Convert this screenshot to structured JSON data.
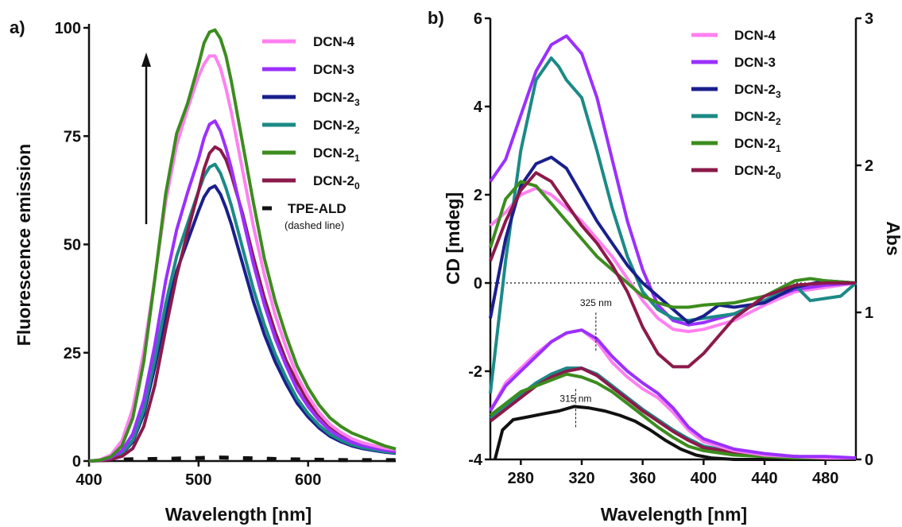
{
  "panels": {
    "a": {
      "letter": "a)",
      "xlabel": "Wavelength [nm]",
      "ylabel": "Fluorescence emission",
      "dashed_note": "(dashed line)"
    },
    "b": {
      "letter": "b)",
      "xlabel": "Wavelength [nm]",
      "ylabel_left": "CD [mdeg]",
      "ylabel_right": "Abs",
      "annotations": [
        {
          "text": "325 nm",
          "x": 322,
          "abs": 0.88
        },
        {
          "text": "315 nm",
          "x": 315,
          "abs": 0.36
        }
      ]
    }
  },
  "colors": {
    "DCN-4": "#ff80f0",
    "DCN-3": "#9b30ff",
    "DCN-2_3": "#1a1f8c",
    "DCN-2_2": "#1b8a86",
    "DCN-2_1": "#3c8c1e",
    "DCN-2_0": "#8b1a4a",
    "TPE-ALD": "#111111"
  },
  "chart_data": [
    {
      "type": "line",
      "xlabel": "Wavelength [nm]",
      "ylabel": "Fluorescence emission",
      "xlim": [
        400,
        680
      ],
      "ylim": [
        0,
        100
      ],
      "xticks": [
        400,
        500,
        600
      ],
      "yticks": [
        0,
        25,
        50,
        75,
        100
      ],
      "legend_position": "top-right",
      "arrow": "up",
      "series": [
        {
          "name": "DCN-4",
          "key": "DCN-4",
          "label_main": "DCN-4",
          "label_sub": "",
          "peak": 93.5
        },
        {
          "name": "DCN-3",
          "key": "DCN-3",
          "label_main": "DCN-3",
          "label_sub": "",
          "peak": 78.5
        },
        {
          "name": "DCN-23",
          "key": "DCN-2_3",
          "label_main": "DCN-2",
          "label_sub": "3",
          "peak": 63.5
        },
        {
          "name": "DCN-22",
          "key": "DCN-2_2",
          "label_main": "DCN-2",
          "label_sub": "2",
          "peak": 68.5
        },
        {
          "name": "DCN-21",
          "key": "DCN-2_1",
          "label_main": "DCN-2",
          "label_sub": "1",
          "peak": 99.5
        },
        {
          "name": "DCN-20",
          "key": "DCN-2_0",
          "label_main": "DCN-2",
          "label_sub": "0",
          "peak": 72.5
        },
        {
          "name": "TPE-ALD",
          "key": "TPE-ALD",
          "label_main": "TPE-ALD",
          "label_sub": "",
          "dashed": true,
          "x": [
            410,
            440,
            470,
            500,
            520,
            550,
            580,
            610,
            640,
            670,
            680
          ],
          "y": [
            0.2,
            0.4,
            0.5,
            0.7,
            0.8,
            0.6,
            0.4,
            0.3,
            0.2,
            0.2,
            0.2
          ]
        }
      ],
      "x": [
        400,
        410,
        420,
        430,
        440,
        450,
        460,
        470,
        480,
        490,
        500,
        505,
        510,
        515,
        520,
        525,
        530,
        540,
        550,
        560,
        570,
        580,
        590,
        600,
        610,
        620,
        630,
        640,
        650,
        660,
        670,
        680
      ],
      "shapes": {
        "DCN-4": [
          0,
          0.3,
          1.5,
          5,
          13,
          27,
          45,
          64,
          78,
          87,
          95,
          98,
          100,
          100,
          97,
          92,
          86,
          72,
          58,
          46,
          36,
          28,
          21,
          16,
          12,
          9,
          7,
          5.5,
          4.5,
          3.8,
          3.2,
          2.8
        ],
        "DCN-3": [
          0,
          0.2,
          1,
          3,
          8,
          18,
          34,
          53,
          68,
          79,
          89,
          95,
          99,
          100,
          97,
          92,
          86,
          72,
          58,
          46,
          36,
          28,
          21,
          16,
          12,
          9,
          7,
          5.5,
          4.5,
          3.8,
          3.2,
          2.8
        ],
        "DCN-2_3": [
          0,
          0.2,
          0.8,
          2.5,
          7,
          17,
          34,
          53,
          69,
          80,
          91,
          96,
          99,
          100,
          97,
          92,
          86,
          72,
          58,
          46,
          36,
          28,
          21,
          16,
          12,
          9,
          7,
          5.5,
          4.5,
          3.8,
          3.2,
          2.8
        ],
        "DCN-2_2": [
          0,
          0.2,
          0.8,
          2.5,
          7,
          17,
          34,
          53,
          69,
          80,
          91,
          96,
          99,
          100,
          97,
          92,
          86,
          72,
          58,
          46,
          36,
          28,
          21,
          16,
          12,
          9,
          7,
          5.5,
          4.5,
          3.8,
          3.2,
          2.8
        ],
        "DCN-2_1": [
          0,
          0.2,
          1,
          3.5,
          10,
          23,
          42,
          62,
          76,
          83,
          92,
          97,
          99.5,
          100,
          98,
          94,
          88,
          74,
          60,
          47,
          37,
          29,
          22,
          17,
          13,
          10,
          8,
          6.5,
          5.5,
          4.5,
          3.5,
          2.8
        ],
        "DCN-2_0": [
          0,
          0.1,
          0.5,
          1.5,
          4,
          11,
          24,
          42,
          59,
          73,
          86,
          93,
          98,
          100,
          99,
          96,
          91,
          79,
          65,
          52,
          41,
          32,
          25,
          19,
          14.5,
          11,
          8.5,
          6.5,
          5.2,
          4.3,
          3.5,
          3
        ]
      }
    },
    {
      "type": "line",
      "xlabel": "Wavelength [nm]",
      "ylabel": "CD [mdeg]",
      "ylabel_right": "Abs",
      "xlim": [
        260,
        500
      ],
      "ylim_left": [
        -4,
        6
      ],
      "ylim_right": [
        0,
        3
      ],
      "xticks": [
        280,
        320,
        360,
        400,
        440,
        480
      ],
      "yticks_left": [
        -4,
        -2,
        0,
        2,
        4,
        6
      ],
      "yticks_right": [
        0,
        1,
        2,
        3
      ],
      "legend_position": "top-right",
      "zero_line": "dotted",
      "series": [
        {
          "name": "DCN-4",
          "key": "DCN-4",
          "label_main": "DCN-4",
          "label_sub": "",
          "cd_x": [
            260,
            270,
            280,
            290,
            300,
            310,
            320,
            330,
            340,
            350,
            360,
            370,
            380,
            390,
            400,
            420,
            440,
            460,
            480,
            500
          ],
          "cd_y": [
            1.3,
            1.6,
            2.0,
            2.15,
            2.0,
            1.7,
            1.4,
            1.0,
            0.6,
            0.1,
            -0.4,
            -0.8,
            -1.05,
            -1.1,
            -1.05,
            -0.85,
            -0.5,
            -0.2,
            -0.1,
            0
          ],
          "abs_x": [
            260,
            270,
            280,
            290,
            300,
            310,
            320,
            330,
            340,
            350,
            360,
            370,
            380,
            390,
            400,
            420,
            440,
            460,
            480,
            500
          ],
          "abs_y": [
            0.33,
            0.52,
            0.62,
            0.72,
            0.8,
            0.86,
            0.88,
            0.8,
            0.66,
            0.56,
            0.48,
            0.42,
            0.32,
            0.2,
            0.12,
            0.06,
            0.03,
            0.02,
            0.01,
            0.01
          ]
        },
        {
          "name": "DCN-3",
          "key": "DCN-3",
          "label_main": "DCN-3",
          "label_sub": "",
          "cd_x": [
            260,
            270,
            280,
            290,
            300,
            310,
            320,
            330,
            340,
            350,
            360,
            370,
            380,
            390,
            400,
            420,
            440,
            460,
            480,
            500
          ],
          "cd_y": [
            2.3,
            2.8,
            3.8,
            4.8,
            5.4,
            5.6,
            5.2,
            4.2,
            2.8,
            1.4,
            0.3,
            -0.5,
            -0.85,
            -0.95,
            -0.9,
            -0.7,
            -0.4,
            -0.15,
            -0.05,
            0
          ],
          "abs_x": [
            260,
            270,
            280,
            290,
            300,
            310,
            320,
            330,
            340,
            350,
            360,
            370,
            380,
            390,
            400,
            420,
            440,
            460,
            480,
            500
          ],
          "abs_y": [
            0.33,
            0.5,
            0.6,
            0.7,
            0.8,
            0.86,
            0.88,
            0.82,
            0.7,
            0.6,
            0.52,
            0.45,
            0.35,
            0.22,
            0.14,
            0.07,
            0.04,
            0.02,
            0.02,
            0.01
          ]
        },
        {
          "name": "DCN-23",
          "key": "DCN-2_3",
          "label_main": "DCN-2",
          "label_sub": "3",
          "cd_x": [
            260,
            270,
            280,
            290,
            300,
            310,
            320,
            330,
            340,
            350,
            360,
            370,
            380,
            390,
            400,
            410,
            420,
            440,
            460,
            480,
            500
          ],
          "cd_y": [
            -0.8,
            1.0,
            2.2,
            2.7,
            2.85,
            2.6,
            2.0,
            1.4,
            0.9,
            0.4,
            0.0,
            -0.3,
            -0.6,
            -0.9,
            -0.75,
            -0.5,
            -0.55,
            -0.45,
            -0.1,
            0.05,
            0
          ],
          "abs_x": [
            260,
            270,
            280,
            290,
            300,
            310,
            320,
            330,
            340,
            350,
            360,
            370,
            380,
            390,
            400,
            420,
            440,
            460,
            480,
            500
          ],
          "abs_y": [
            0.28,
            0.36,
            0.44,
            0.52,
            0.58,
            0.62,
            0.62,
            0.58,
            0.5,
            0.42,
            0.34,
            0.27,
            0.2,
            0.14,
            0.09,
            0.05,
            0.03,
            0.02,
            0.01,
            0.01
          ]
        },
        {
          "name": "DCN-22",
          "key": "DCN-2_2",
          "label_main": "DCN-2",
          "label_sub": "2",
          "cd_x": [
            260,
            270,
            280,
            290,
            300,
            305,
            310,
            320,
            330,
            340,
            350,
            360,
            370,
            380,
            390,
            400,
            420,
            440,
            460,
            470,
            480,
            490,
            500
          ],
          "cd_y": [
            -2.5,
            0.5,
            3.0,
            4.6,
            5.1,
            4.9,
            4.6,
            4.2,
            3.0,
            1.7,
            0.6,
            -0.2,
            -0.6,
            -0.8,
            -0.85,
            -0.8,
            -0.7,
            -0.4,
            -0.05,
            -0.4,
            -0.35,
            -0.3,
            0
          ],
          "abs_x": [
            260,
            270,
            280,
            290,
            300,
            310,
            320,
            330,
            340,
            350,
            360,
            370,
            380,
            390,
            400,
            420,
            440,
            460,
            480,
            500
          ],
          "abs_y": [
            0.28,
            0.36,
            0.44,
            0.52,
            0.58,
            0.62,
            0.62,
            0.58,
            0.5,
            0.42,
            0.34,
            0.27,
            0.2,
            0.14,
            0.09,
            0.05,
            0.03,
            0.02,
            0.01,
            0.01
          ]
        },
        {
          "name": "DCN-21",
          "key": "DCN-2_1",
          "label_main": "DCN-2",
          "label_sub": "1",
          "cd_x": [
            260,
            270,
            280,
            290,
            300,
            310,
            320,
            330,
            340,
            350,
            360,
            370,
            380,
            390,
            400,
            420,
            440,
            460,
            470,
            480,
            500
          ],
          "cd_y": [
            0.8,
            1.9,
            2.3,
            2.2,
            1.8,
            1.4,
            1.0,
            0.6,
            0.3,
            0.0,
            -0.3,
            -0.45,
            -0.55,
            -0.55,
            -0.5,
            -0.45,
            -0.3,
            0.05,
            0.1,
            0.05,
            0
          ],
          "abs_x": [
            260,
            270,
            280,
            290,
            300,
            310,
            320,
            330,
            340,
            350,
            360,
            370,
            380,
            390,
            400,
            420,
            440,
            460,
            480,
            500
          ],
          "abs_y": [
            0.3,
            0.38,
            0.46,
            0.5,
            0.54,
            0.58,
            0.56,
            0.52,
            0.46,
            0.38,
            0.3,
            0.22,
            0.15,
            0.09,
            0.06,
            0.03,
            0.02,
            0.01,
            0.01,
            0.01
          ]
        },
        {
          "name": "DCN-20",
          "key": "DCN-2_0",
          "label_main": "DCN-2",
          "label_sub": "0",
          "cd_x": [
            260,
            270,
            280,
            290,
            300,
            310,
            320,
            330,
            340,
            350,
            360,
            370,
            380,
            390,
            400,
            410,
            420,
            440,
            460,
            480,
            500
          ],
          "cd_y": [
            0.5,
            1.4,
            2.1,
            2.5,
            2.3,
            1.8,
            1.3,
            0.9,
            0.4,
            -0.2,
            -1.0,
            -1.6,
            -1.9,
            -1.9,
            -1.6,
            -1.2,
            -0.8,
            -0.3,
            -0.05,
            0,
            0
          ],
          "abs_x": [
            260,
            270,
            280,
            290,
            300,
            310,
            320,
            330,
            340,
            350,
            360,
            370,
            380,
            390,
            400,
            420,
            440,
            460,
            480,
            500
          ],
          "abs_y": [
            0.26,
            0.34,
            0.42,
            0.5,
            0.56,
            0.6,
            0.62,
            0.57,
            0.49,
            0.41,
            0.33,
            0.26,
            0.19,
            0.13,
            0.08,
            0.05,
            0.03,
            0.02,
            0.01,
            0.01
          ]
        },
        {
          "name": "TPE-ALD",
          "key": "TPE-ALD",
          "label_main": "TPE-ALD",
          "label_sub": "",
          "abs_x": [
            263,
            268,
            275,
            285,
            295,
            305,
            315,
            325,
            335,
            345,
            355,
            365,
            375,
            385,
            395,
            405,
            420,
            440,
            460,
            500
          ],
          "abs_y": [
            0.0,
            0.2,
            0.27,
            0.29,
            0.31,
            0.33,
            0.36,
            0.35,
            0.33,
            0.3,
            0.26,
            0.2,
            0.13,
            0.07,
            0.03,
            0.01,
            0.0,
            0.0,
            0.0,
            0.0
          ]
        }
      ]
    }
  ]
}
